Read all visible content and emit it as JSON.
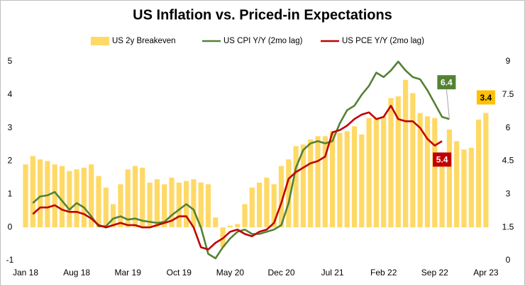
{
  "chart_data": {
    "type": "bar-line",
    "title": "US Inflation vs. Priced-in Expectations",
    "categories": [
      "Jan 18",
      null,
      null,
      null,
      null,
      null,
      null,
      "Aug 18",
      null,
      null,
      null,
      null,
      null,
      null,
      "Mar 19",
      null,
      null,
      null,
      null,
      null,
      null,
      "Oct 19",
      null,
      null,
      null,
      null,
      null,
      null,
      "May 20",
      null,
      null,
      null,
      null,
      null,
      null,
      "Dec 20",
      null,
      null,
      null,
      null,
      null,
      null,
      "Jul 21",
      null,
      null,
      null,
      null,
      null,
      null,
      "Feb 22",
      null,
      null,
      null,
      null,
      null,
      null,
      "Sep 22",
      null,
      null,
      null,
      null,
      null,
      null,
      "Apr 23"
    ],
    "series": [
      {
        "name": "US 2y Breakeven",
        "type": "bar",
        "color": "#ffd966",
        "values": [
          1.9,
          2.15,
          2.05,
          2.0,
          1.9,
          1.85,
          1.7,
          1.75,
          1.8,
          1.9,
          1.55,
          1.2,
          0.7,
          1.3,
          1.75,
          1.85,
          1.8,
          1.35,
          1.45,
          1.3,
          1.5,
          1.35,
          1.4,
          1.45,
          1.35,
          1.3,
          0.3,
          -0.6,
          0.05,
          0.1,
          0.7,
          1.2,
          1.35,
          1.5,
          1.3,
          1.85,
          2.05,
          2.45,
          2.5,
          2.65,
          2.75,
          2.75,
          2.9,
          2.85,
          2.9,
          3.05,
          2.8,
          3.3,
          3.3,
          3.35,
          3.9,
          3.95,
          4.45,
          4.05,
          3.45,
          3.35,
          3.3,
          2.05,
          2.95,
          2.6,
          2.35,
          2.4,
          3.25,
          3.45
        ]
      },
      {
        "name": "US CPI Y/Y (2mo lag)",
        "type": "line",
        "axis": "y2",
        "color": "#548235",
        "values": [
          null,
          2.6,
          2.9,
          2.95,
          3.1,
          2.7,
          2.3,
          2.6,
          2.4,
          2.0,
          1.55,
          1.55,
          1.9,
          2.0,
          1.85,
          1.9,
          1.8,
          1.75,
          1.7,
          1.75,
          2.05,
          2.3,
          2.55,
          2.3,
          1.5,
          0.3,
          0.1,
          0.6,
          1.0,
          1.3,
          1.4,
          1.2,
          1.2,
          1.3,
          1.4,
          1.6,
          2.6,
          4.2,
          5.0,
          5.3,
          5.4,
          5.3,
          5.4,
          6.2,
          6.8,
          7.0,
          7.5,
          7.9,
          8.5,
          8.3,
          8.6,
          9.0,
          8.6,
          8.3,
          8.2,
          7.7,
          7.1,
          6.5,
          6.4,
          null,
          null,
          null,
          null,
          null
        ]
      },
      {
        "name": "US PCE Y/Y (2mo lag)",
        "type": "line",
        "axis": "y2",
        "color": "#c00000",
        "values": [
          null,
          2.1,
          2.4,
          2.4,
          2.5,
          2.3,
          2.2,
          2.2,
          2.1,
          1.9,
          1.6,
          1.5,
          1.6,
          1.7,
          1.6,
          1.6,
          1.5,
          1.5,
          1.6,
          1.7,
          1.8,
          2.0,
          2.0,
          1.5,
          0.6,
          0.5,
          0.8,
          1.0,
          1.3,
          1.4,
          1.2,
          1.1,
          1.3,
          1.4,
          1.7,
          2.6,
          3.7,
          4.0,
          4.2,
          4.4,
          4.5,
          4.7,
          5.8,
          5.9,
          6.1,
          6.4,
          6.6,
          6.7,
          6.4,
          6.5,
          7.0,
          6.4,
          6.3,
          6.3,
          6.0,
          5.5,
          5.2,
          5.4,
          null,
          null,
          null,
          null,
          null,
          null
        ]
      }
    ],
    "annotations": [
      {
        "text": "3.4",
        "color": "#ffc000"
      },
      {
        "text": "6.4",
        "color": "#548235"
      },
      {
        "text": "5.4",
        "color": "#c00000"
      }
    ],
    "ylim": [
      -1,
      5
    ],
    "yticks": [
      -1,
      0,
      1,
      2,
      3,
      4,
      5
    ],
    "y2lim": [
      0,
      9
    ],
    "y2ticks": [
      0,
      1.5,
      3,
      4.5,
      6,
      7.5,
      9
    ]
  }
}
